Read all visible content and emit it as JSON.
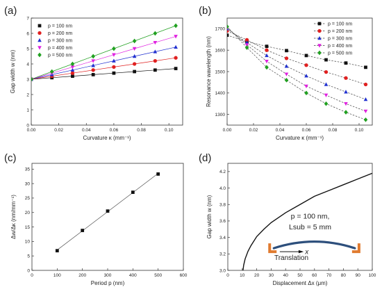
{
  "chart_data": [
    {
      "panel": "(a)",
      "type": "scatter",
      "xlabel": "Curvature κ (mm⁻¹)",
      "ylabel": "Gap width w (nm)",
      "xlim": [
        0.0,
        0.11
      ],
      "ylim": [
        0,
        7
      ],
      "xticks": [
        "0.00",
        "0.02",
        "0.04",
        "0.06",
        "0.08",
        "0.10"
      ],
      "yticks": [
        "0",
        "1",
        "2",
        "3",
        "4",
        "5",
        "6",
        "7"
      ],
      "legend_position": "top-left",
      "fit_lines": true,
      "x": [
        0,
        0.015,
        0.03,
        0.045,
        0.06,
        0.075,
        0.09,
        0.105
      ],
      "series": [
        {
          "name": "p = 100 nm",
          "color": "#111111",
          "marker": "square",
          "values": [
            3.0,
            3.1,
            3.2,
            3.3,
            3.4,
            3.5,
            3.6,
            3.7
          ]
        },
        {
          "name": "p = 200 nm",
          "color": "#e02020",
          "marker": "circle",
          "values": [
            3.0,
            3.2,
            3.4,
            3.6,
            3.8,
            4.0,
            4.2,
            4.4
          ]
        },
        {
          "name": "p = 300 nm",
          "color": "#2030d0",
          "marker": "triangle-up",
          "values": [
            3.0,
            3.3,
            3.6,
            3.9,
            4.2,
            4.5,
            4.8,
            5.1
          ]
        },
        {
          "name": "p = 400 nm",
          "color": "#e020e0",
          "marker": "triangle-down",
          "values": [
            3.0,
            3.4,
            3.8,
            4.2,
            4.6,
            5.0,
            5.4,
            5.8
          ]
        },
        {
          "name": "p = 500 nm",
          "color": "#20a020",
          "marker": "diamond",
          "values": [
            3.0,
            3.5,
            4.0,
            4.5,
            5.0,
            5.5,
            6.0,
            6.5
          ]
        }
      ]
    },
    {
      "panel": "(b)",
      "type": "line",
      "xlabel": "Curvature κ (mm⁻¹)",
      "ylabel": "Resonance wavelength (nm)",
      "xlim": [
        0.0,
        0.11
      ],
      "ylim": [
        1250,
        1750
      ],
      "xticks": [
        "0.00",
        "0.02",
        "0.04",
        "0.06",
        "0.08",
        "0.10"
      ],
      "yticks": [
        "1300",
        "1400",
        "1500",
        "1600",
        "1700"
      ],
      "legend_position": "top-right",
      "line_style": "dashed",
      "x": [
        0,
        0.015,
        0.03,
        0.045,
        0.06,
        0.075,
        0.09,
        0.105
      ],
      "series": [
        {
          "name": "p = 100 nm",
          "color": "#111111",
          "marker": "square",
          "values": [
            1670,
            1640,
            1618,
            1598,
            1575,
            1555,
            1540,
            1520
          ]
        },
        {
          "name": "p = 200 nm",
          "color": "#e02020",
          "marker": "circle",
          "values": [
            1690,
            1648,
            1600,
            1562,
            1530,
            1498,
            1470,
            1440
          ]
        },
        {
          "name": "p = 300 nm",
          "color": "#2030d0",
          "marker": "triangle-up",
          "values": [
            1700,
            1635,
            1575,
            1525,
            1480,
            1440,
            1405,
            1370
          ]
        },
        {
          "name": "p = 400 nm",
          "color": "#e020e0",
          "marker": "triangle-down",
          "values": [
            1705,
            1625,
            1548,
            1488,
            1432,
            1390,
            1350,
            1315
          ]
        },
        {
          "name": "p = 500 nm",
          "color": "#20a020",
          "marker": "diamond",
          "values": [
            1710,
            1612,
            1520,
            1460,
            1400,
            1350,
            1310,
            1275
          ]
        }
      ]
    },
    {
      "panel": "(c)",
      "type": "scatter",
      "xlabel": "Period p (nm)",
      "ylabel": "Δw/Δκ (nm/mm⁻¹)",
      "xlim": [
        0,
        600
      ],
      "ylim": [
        0,
        37
      ],
      "xticks": [
        "0",
        "100",
        "200",
        "300",
        "400",
        "500",
        "600"
      ],
      "yticks": [
        "0",
        "5",
        "10",
        "15",
        "20",
        "25",
        "30",
        "35"
      ],
      "fit_line": true,
      "x": [
        100,
        200,
        300,
        400,
        500
      ],
      "values": [
        6.8,
        13.8,
        20.5,
        27.0,
        33.3
      ],
      "marker": "square",
      "color": "#111111"
    },
    {
      "panel": "(d)",
      "type": "line",
      "xlabel": "Displacement Δx (μm)",
      "ylabel": "Gap width w (nm)",
      "xlim": [
        0,
        100
      ],
      "ylim": [
        3.0,
        4.3
      ],
      "xticks": [
        "0",
        "10",
        "20",
        "30",
        "40",
        "50",
        "60",
        "70",
        "80",
        "90",
        "100"
      ],
      "yticks": [
        "3.0",
        "3.2",
        "3.4",
        "3.6",
        "3.8",
        "4.0",
        "4.2"
      ],
      "x": [
        10.5,
        11,
        12,
        14,
        16,
        20,
        25,
        30,
        40,
        50,
        60,
        70,
        80,
        90,
        100
      ],
      "values": [
        3.0,
        3.065,
        3.14,
        3.233,
        3.3,
        3.41,
        3.5,
        3.58,
        3.7,
        3.8,
        3.9,
        3.97,
        4.04,
        4.11,
        4.18
      ],
      "color": "#111111",
      "annotation_lines": [
        "p = 100 nm,",
        "Lsub = 5 mm"
      ],
      "inset_arrow_label": "x",
      "inset_caption": "Translation",
      "inset_colors": {
        "clamp": "#e07b30",
        "substrate": "#2d4f7c"
      }
    }
  ]
}
